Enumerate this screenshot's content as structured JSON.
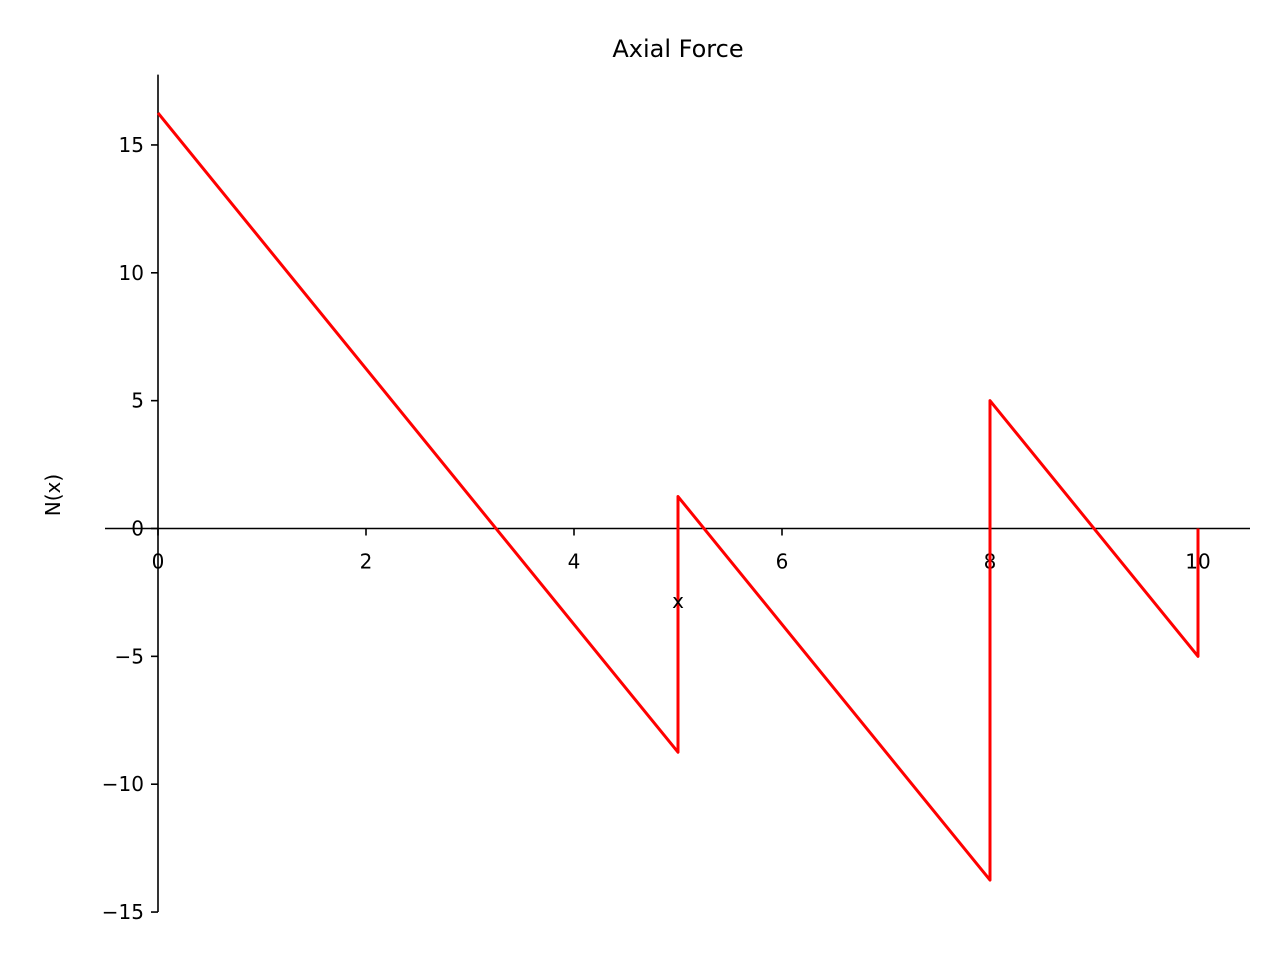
{
  "chart_data": {
    "type": "line",
    "title": "Axial Force",
    "xlabel": "x",
    "ylabel": "N(x)",
    "xlim": [
      0,
      10.5
    ],
    "ylim": [
      -15,
      17.75
    ],
    "xticks": [
      0,
      2,
      4,
      6,
      8,
      10
    ],
    "yticks": [
      15,
      10,
      5,
      0,
      -5,
      -10,
      -15
    ],
    "grid": false,
    "color": "#ff0000",
    "series": [
      {
        "x": [
          0,
          5,
          5,
          8,
          8,
          10,
          10
        ],
        "y": [
          16.25,
          -8.75,
          1.25,
          -13.75,
          5.0,
          -5.0,
          0.0
        ]
      }
    ]
  }
}
